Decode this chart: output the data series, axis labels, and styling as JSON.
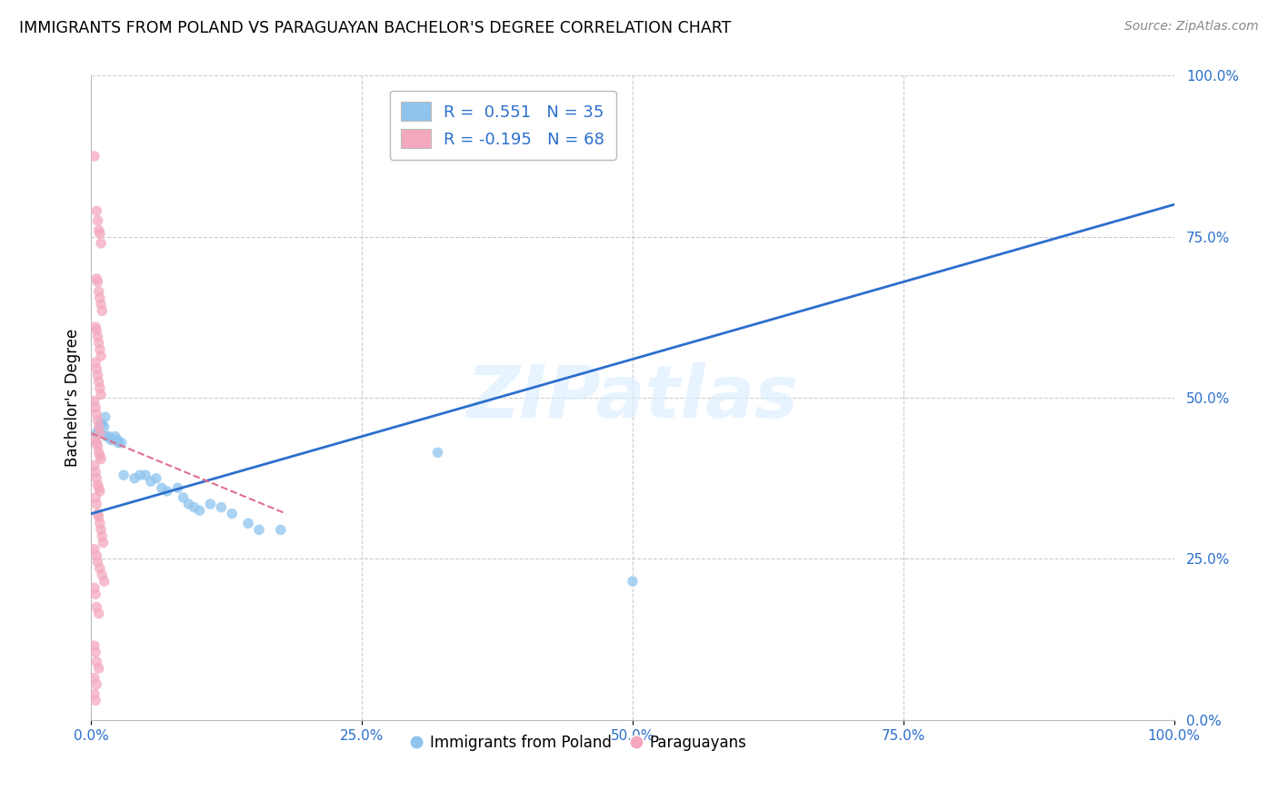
{
  "title": "IMMIGRANTS FROM POLAND VS PARAGUAYAN BACHELOR'S DEGREE CORRELATION CHART",
  "source": "Source: ZipAtlas.com",
  "ylabel": "Bachelor's Degree",
  "xlim": [
    0.0,
    1.0
  ],
  "ylim": [
    0.0,
    1.0
  ],
  "xticks": [
    0.0,
    0.25,
    0.5,
    0.75,
    1.0
  ],
  "yticks": [
    0.0,
    0.25,
    0.5,
    0.75,
    1.0
  ],
  "xtick_labels": [
    "0.0%",
    "25.0%",
    "50.0%",
    "75.0%",
    "100.0%"
  ],
  "ytick_labels": [
    "0.0%",
    "25.0%",
    "50.0%",
    "75.0%",
    "100.0%"
  ],
  "watermark": "ZIPatlas",
  "legend_label_blue": "R =  0.551   N = 35",
  "legend_label_pink": "R = -0.195   N = 68",
  "legend_bottom_blue": "Immigrants from Poland",
  "legend_bottom_pink": "Paraguayans",
  "blue_color": "#8EC4EE",
  "pink_color": "#F4A8BE",
  "blue_line_color": "#2B6FCC",
  "pink_line_color": "#E07090",
  "scatter_size": 70,
  "blue_line": [
    [
      0.0,
      0.32
    ],
    [
      1.0,
      0.8
    ]
  ],
  "pink_line": [
    [
      0.0,
      0.445
    ],
    [
      0.18,
      0.32
    ]
  ],
  "blue_points": [
    [
      0.005,
      0.445
    ],
    [
      0.007,
      0.45
    ],
    [
      0.009,
      0.46
    ],
    [
      0.01,
      0.46
    ],
    [
      0.012,
      0.455
    ],
    [
      0.013,
      0.47
    ],
    [
      0.014,
      0.44
    ],
    [
      0.016,
      0.44
    ],
    [
      0.018,
      0.435
    ],
    [
      0.02,
      0.435
    ],
    [
      0.022,
      0.44
    ],
    [
      0.024,
      0.435
    ],
    [
      0.025,
      0.43
    ],
    [
      0.028,
      0.43
    ],
    [
      0.03,
      0.38
    ],
    [
      0.04,
      0.375
    ],
    [
      0.045,
      0.38
    ],
    [
      0.05,
      0.38
    ],
    [
      0.055,
      0.37
    ],
    [
      0.06,
      0.375
    ],
    [
      0.065,
      0.36
    ],
    [
      0.07,
      0.355
    ],
    [
      0.08,
      0.36
    ],
    [
      0.085,
      0.345
    ],
    [
      0.09,
      0.335
    ],
    [
      0.095,
      0.33
    ],
    [
      0.1,
      0.325
    ],
    [
      0.11,
      0.335
    ],
    [
      0.12,
      0.33
    ],
    [
      0.13,
      0.32
    ],
    [
      0.145,
      0.305
    ],
    [
      0.155,
      0.295
    ],
    [
      0.175,
      0.295
    ],
    [
      0.32,
      0.415
    ],
    [
      0.5,
      0.215
    ]
  ],
  "pink_points": [
    [
      0.003,
      0.875
    ],
    [
      0.005,
      0.79
    ],
    [
      0.006,
      0.775
    ],
    [
      0.007,
      0.76
    ],
    [
      0.008,
      0.755
    ],
    [
      0.009,
      0.74
    ],
    [
      0.005,
      0.685
    ],
    [
      0.006,
      0.68
    ],
    [
      0.007,
      0.665
    ],
    [
      0.008,
      0.655
    ],
    [
      0.009,
      0.645
    ],
    [
      0.01,
      0.635
    ],
    [
      0.004,
      0.61
    ],
    [
      0.005,
      0.605
    ],
    [
      0.006,
      0.595
    ],
    [
      0.007,
      0.585
    ],
    [
      0.008,
      0.575
    ],
    [
      0.009,
      0.565
    ],
    [
      0.004,
      0.555
    ],
    [
      0.005,
      0.545
    ],
    [
      0.006,
      0.535
    ],
    [
      0.007,
      0.525
    ],
    [
      0.008,
      0.515
    ],
    [
      0.009,
      0.505
    ],
    [
      0.003,
      0.495
    ],
    [
      0.004,
      0.485
    ],
    [
      0.005,
      0.475
    ],
    [
      0.006,
      0.465
    ],
    [
      0.007,
      0.455
    ],
    [
      0.008,
      0.445
    ],
    [
      0.004,
      0.435
    ],
    [
      0.005,
      0.43
    ],
    [
      0.006,
      0.425
    ],
    [
      0.007,
      0.415
    ],
    [
      0.008,
      0.41
    ],
    [
      0.009,
      0.405
    ],
    [
      0.003,
      0.395
    ],
    [
      0.004,
      0.385
    ],
    [
      0.005,
      0.375
    ],
    [
      0.006,
      0.365
    ],
    [
      0.007,
      0.36
    ],
    [
      0.008,
      0.355
    ],
    [
      0.004,
      0.345
    ],
    [
      0.005,
      0.335
    ],
    [
      0.006,
      0.32
    ],
    [
      0.007,
      0.315
    ],
    [
      0.008,
      0.305
    ],
    [
      0.009,
      0.295
    ],
    [
      0.01,
      0.285
    ],
    [
      0.011,
      0.275
    ],
    [
      0.003,
      0.265
    ],
    [
      0.005,
      0.255
    ],
    [
      0.006,
      0.245
    ],
    [
      0.008,
      0.235
    ],
    [
      0.01,
      0.225
    ],
    [
      0.012,
      0.215
    ],
    [
      0.003,
      0.205
    ],
    [
      0.004,
      0.195
    ],
    [
      0.005,
      0.175
    ],
    [
      0.007,
      0.165
    ],
    [
      0.003,
      0.115
    ],
    [
      0.004,
      0.105
    ],
    [
      0.005,
      0.09
    ],
    [
      0.007,
      0.08
    ],
    [
      0.003,
      0.065
    ],
    [
      0.005,
      0.055
    ],
    [
      0.003,
      0.04
    ],
    [
      0.004,
      0.03
    ]
  ]
}
